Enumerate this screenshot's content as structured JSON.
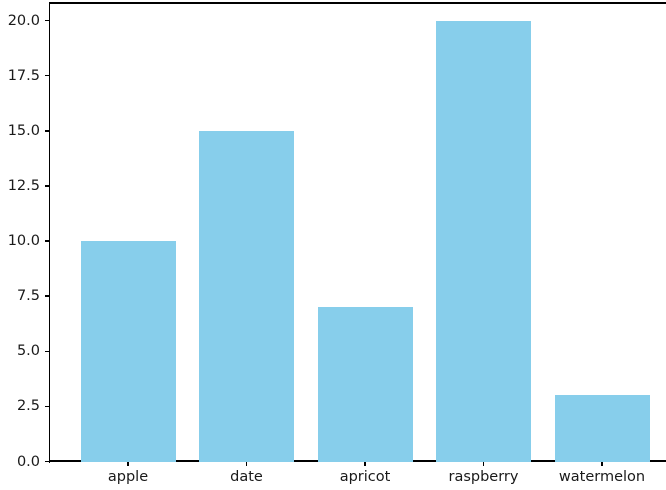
{
  "chart_data": {
    "type": "bar",
    "categories": [
      "apple",
      "date",
      "apricot",
      "raspberry",
      "watermelon"
    ],
    "values": [
      10,
      15,
      7,
      20,
      3
    ],
    "title": "",
    "xlabel": "",
    "ylabel": "",
    "ylim": [
      0,
      20.8
    ],
    "yticks": [
      0.0,
      2.5,
      5.0,
      7.5,
      10.0,
      12.5,
      15.0,
      17.5,
      20.0
    ],
    "ytick_labels": [
      "0.0",
      "2.5",
      "5.0",
      "7.5",
      "10.0",
      "12.5",
      "15.0",
      "17.5",
      "20.0"
    ],
    "grid": false,
    "legend": null,
    "bar_color": "#87CEEB"
  },
  "colors": {
    "bar": "#87CEEB",
    "spine": "#000000",
    "tick_text": "#1a1a1a",
    "background": "#ffffff"
  }
}
